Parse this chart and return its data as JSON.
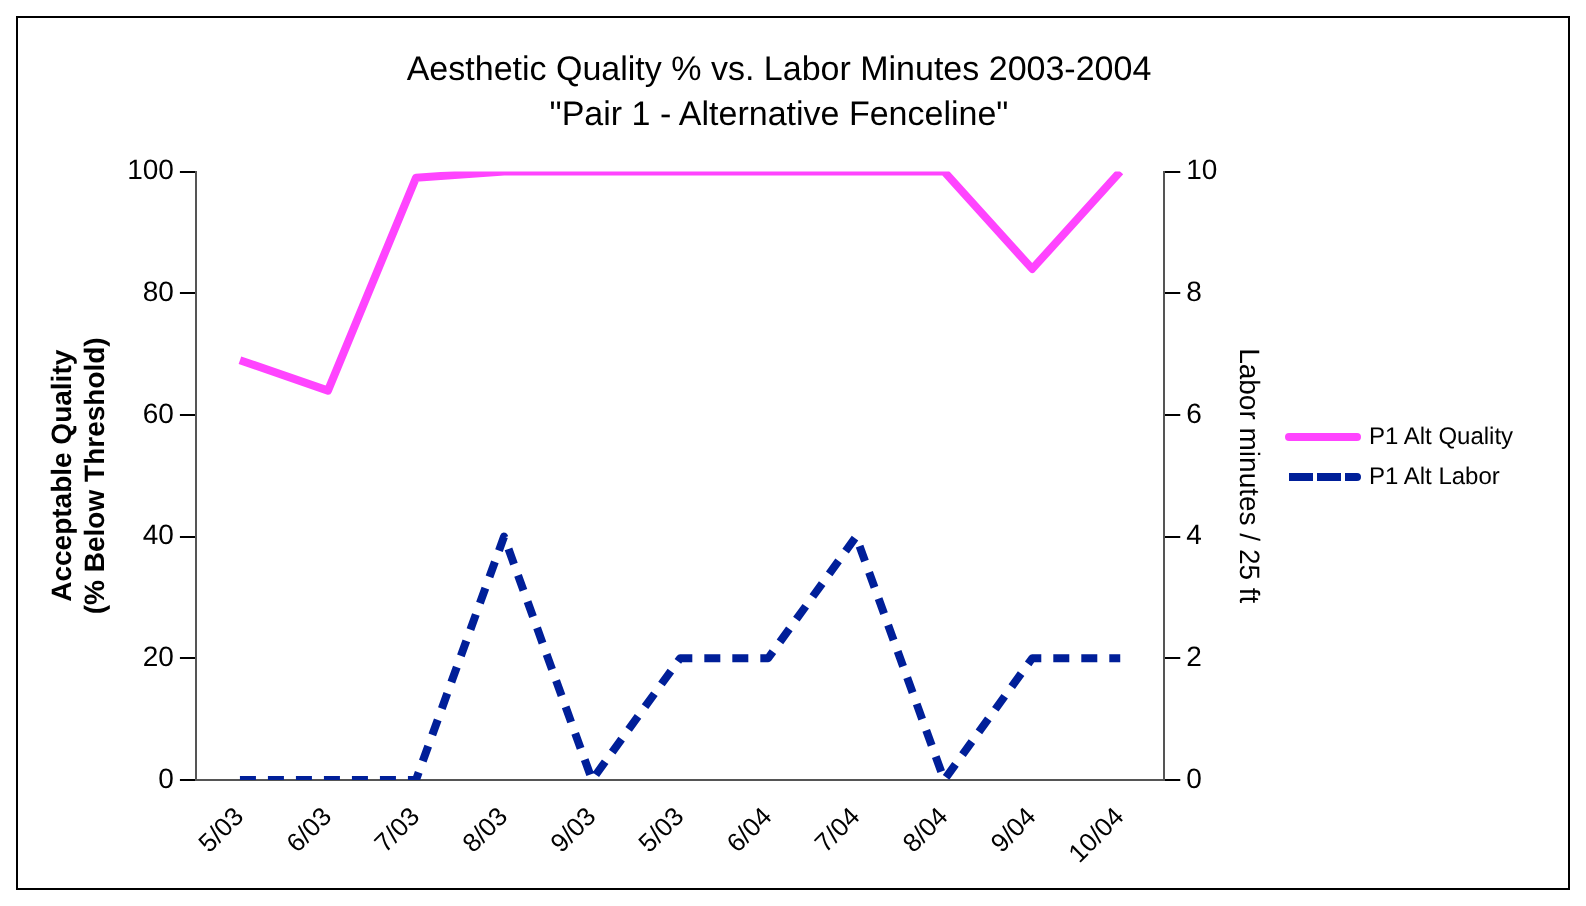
{
  "chart_data": {
    "type": "line",
    "title": "Aesthetic Quality % vs. Labor Minutes 2003-2004",
    "subtitle": "\"Pair 1 - Alternative Fenceline\"",
    "ylabel": "Acceptable Quality (% Below Threshold)",
    "y2label": "Labor minutes / 25 ft",
    "categories": [
      "5/03",
      "6/03",
      "7/03",
      "8/03",
      "9/03",
      "5/03",
      "6/04",
      "7/04",
      "8/04",
      "9/04",
      "10/04"
    ],
    "series": [
      {
        "name": "P1 Alt Quality",
        "color": "#ff44ff",
        "line_style": "solid",
        "values": [
          69,
          64,
          99,
          100,
          100,
          100,
          100,
          100,
          100,
          84,
          100
        ]
      },
      {
        "name": "P1 Alt Labor",
        "color": "#001f99",
        "line_style": "dashed",
        "axis": "y2",
        "values": [
          0,
          0,
          0,
          4,
          0,
          2,
          2,
          4,
          0,
          2,
          2
        ]
      }
    ],
    "ylim": [
      0,
      100
    ],
    "yticks": [
      0,
      20,
      40,
      60,
      80,
      100
    ],
    "y2lim": [
      0,
      10
    ],
    "y2ticks": [
      0,
      2,
      4,
      6,
      8,
      10
    ],
    "grid": false,
    "legend": "right",
    "marker": "none"
  }
}
